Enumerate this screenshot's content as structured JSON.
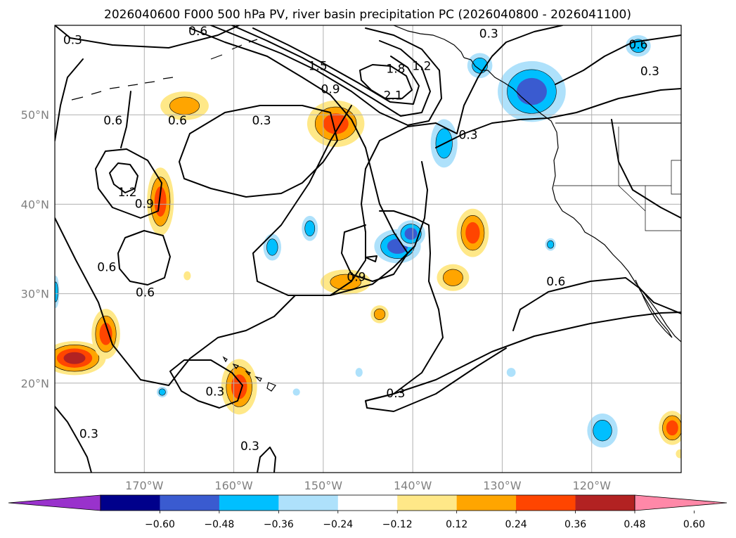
{
  "title": "2026040600 F000 500 hPa PV, river basin precipitation PC (2026040800 - 2026041100)",
  "map": {
    "projection": "lat-lon",
    "lon_range": [
      -180,
      -110
    ],
    "lat_range": [
      10,
      60
    ],
    "gridlines": true,
    "lat_ticks": [
      {
        "value": 50,
        "label": "50°N"
      },
      {
        "value": 40,
        "label": "40°N"
      },
      {
        "value": 30,
        "label": "30°N"
      },
      {
        "value": 20,
        "label": "20°N"
      }
    ],
    "lon_ticks": [
      {
        "value": -170,
        "label": "170°W"
      },
      {
        "value": -160,
        "label": "160°W"
      },
      {
        "value": -150,
        "label": "150°W"
      },
      {
        "value": -140,
        "label": "140°W"
      },
      {
        "value": -130,
        "label": "130°W"
      },
      {
        "value": -120,
        "label": "120°W"
      }
    ]
  },
  "colorbar": {
    "bounds": [
      -0.6,
      -0.48,
      -0.36,
      -0.24,
      -0.12,
      0.12,
      0.24,
      0.36,
      0.48,
      0.6
    ],
    "labels": [
      "−0.60",
      "−0.48",
      "−0.36",
      "−0.24",
      "−0.12",
      "0.12",
      "0.24",
      "0.36",
      "0.48",
      "0.60"
    ],
    "colors": [
      "#9932cc",
      "#00008b",
      "#3a5bd0",
      "#00bfff",
      "#aee1fb",
      "#ffffff",
      "#ffe888",
      "#ffa500",
      "#ff4500",
      "#b22222",
      "#ff88a8"
    ],
    "extend": "both"
  },
  "contour_labels": [
    {
      "text": "0.3",
      "lon": -178,
      "lat": 58.3
    },
    {
      "text": "0.6",
      "lon": -173.5,
      "lat": 49.3
    },
    {
      "text": "0.6",
      "lon": -166.3,
      "lat": 49.3
    },
    {
      "text": "1.2",
      "lon": -171.9,
      "lat": 41.3
    },
    {
      "text": "0.9",
      "lon": -170.0,
      "lat": 40.0
    },
    {
      "text": "0.6",
      "lon": -174.2,
      "lat": 32.9
    },
    {
      "text": "0.6",
      "lon": -169.9,
      "lat": 30.1
    },
    {
      "text": "0.3",
      "lon": -176.2,
      "lat": 14.3
    },
    {
      "text": "0.3",
      "lon": -162.1,
      "lat": 19.0
    },
    {
      "text": "0.3",
      "lon": -158.2,
      "lat": 12.9
    },
    {
      "text": "0.3",
      "lon": -156.9,
      "lat": 49.3
    },
    {
      "text": "1.5",
      "lon": -150.6,
      "lat": 55.4
    },
    {
      "text": "0.9",
      "lon": -149.2,
      "lat": 52.8
    },
    {
      "text": "1.8",
      "lon": -141.9,
      "lat": 55.1
    },
    {
      "text": "1.2",
      "lon": -139.0,
      "lat": 55.4
    },
    {
      "text": "2.1",
      "lon": -142.2,
      "lat": 52.1
    },
    {
      "text": "0.3",
      "lon": -133.8,
      "lat": 47.7
    },
    {
      "text": "0.9",
      "lon": -146.3,
      "lat": 31.8
    },
    {
      "text": "0.6",
      "lon": -124.0,
      "lat": 31.3
    },
    {
      "text": "0.3",
      "lon": -141.9,
      "lat": 18.8
    },
    {
      "text": "0.6",
      "lon": -114.8,
      "lat": 57.8
    },
    {
      "text": "0.3",
      "lon": -113.5,
      "lat": 54.8
    },
    {
      "text": "0.6",
      "lon": -164.0,
      "lat": 59.3
    },
    {
      "text": "0.3",
      "lon": -131.5,
      "lat": 59.0
    }
  ],
  "precip_pc": [
    {
      "lon": -148.6,
      "lat": 49.0,
      "rx": 3.2,
      "ry": 2.6,
      "max_level": 8
    },
    {
      "lon": -165.5,
      "lat": 51.0,
      "rx": 2.7,
      "ry": 1.6,
      "max_level": 7
    },
    {
      "lon": -168.2,
      "lat": 40.3,
      "rx": 1.5,
      "ry": 3.8,
      "max_level": 8
    },
    {
      "lon": -177.8,
      "lat": 22.8,
      "rx": 3.5,
      "ry": 1.9,
      "max_level": 9
    },
    {
      "lon": -174.3,
      "lat": 25.5,
      "rx": 1.6,
      "ry": 2.8,
      "max_level": 8
    },
    {
      "lon": -159.4,
      "lat": 19.6,
      "rx": 2.0,
      "ry": 3.1,
      "max_level": 8
    },
    {
      "lon": -147.5,
      "lat": 31.3,
      "rx": 2.8,
      "ry": 1.4,
      "max_level": 7
    },
    {
      "lon": -143.7,
      "lat": 27.7,
      "rx": 1.0,
      "ry": 1.0,
      "max_level": 7
    },
    {
      "lon": -133.3,
      "lat": 36.8,
      "rx": 1.8,
      "ry": 2.7,
      "max_level": 8
    },
    {
      "lon": -135.5,
      "lat": 31.8,
      "rx": 1.8,
      "ry": 1.5,
      "max_level": 7
    },
    {
      "lon": -111.0,
      "lat": 15.0,
      "rx": 1.5,
      "ry": 1.9,
      "max_level": 8
    },
    {
      "lon": -165.2,
      "lat": 32.0,
      "rx": 0.4,
      "ry": 0.5,
      "max_level": 6
    },
    {
      "lon": -110.1,
      "lat": 12.1,
      "rx": 0.5,
      "ry": 0.5,
      "max_level": 6
    },
    {
      "lon": -141.7,
      "lat": 35.3,
      "rx": 2.6,
      "ry": 1.9,
      "min_level": 2
    },
    {
      "lon": -140.2,
      "lat": 36.7,
      "rx": 1.6,
      "ry": 1.5,
      "min_level": 2
    },
    {
      "lon": -126.7,
      "lat": 52.6,
      "rx": 3.8,
      "ry": 3.4,
      "min_level": 2
    },
    {
      "lon": -132.5,
      "lat": 55.5,
      "rx": 1.4,
      "ry": 1.4,
      "min_level": 3
    },
    {
      "lon": -136.5,
      "lat": 46.8,
      "rx": 1.5,
      "ry": 2.7,
      "min_level": 3
    },
    {
      "lon": -151.5,
      "lat": 37.3,
      "rx": 0.9,
      "ry": 1.4,
      "min_level": 3
    },
    {
      "lon": -155.7,
      "lat": 35.2,
      "rx": 1.0,
      "ry": 1.5,
      "min_level": 3
    },
    {
      "lon": -118.8,
      "lat": 14.7,
      "rx": 1.7,
      "ry": 1.9,
      "min_level": 3
    },
    {
      "lon": -114.8,
      "lat": 57.7,
      "rx": 1.4,
      "ry": 1.2,
      "min_level": 3
    },
    {
      "lon": -124.6,
      "lat": 35.5,
      "rx": 0.6,
      "ry": 0.7,
      "min_level": 3
    },
    {
      "lon": -179.9,
      "lat": 30.2,
      "rx": 0.4,
      "ry": 1.8,
      "min_level": 3
    },
    {
      "lon": -168.0,
      "lat": 19.0,
      "rx": 0.6,
      "ry": 0.6,
      "min_level": 3
    },
    {
      "lon": -129.0,
      "lat": 21.2,
      "rx": 0.5,
      "ry": 0.5,
      "min_level": 4
    },
    {
      "lon": -146.0,
      "lat": 21.2,
      "rx": 0.4,
      "ry": 0.5,
      "min_level": 4
    },
    {
      "lon": -153.0,
      "lat": 19.0,
      "rx": 0.4,
      "ry": 0.4,
      "min_level": 4
    }
  ]
}
